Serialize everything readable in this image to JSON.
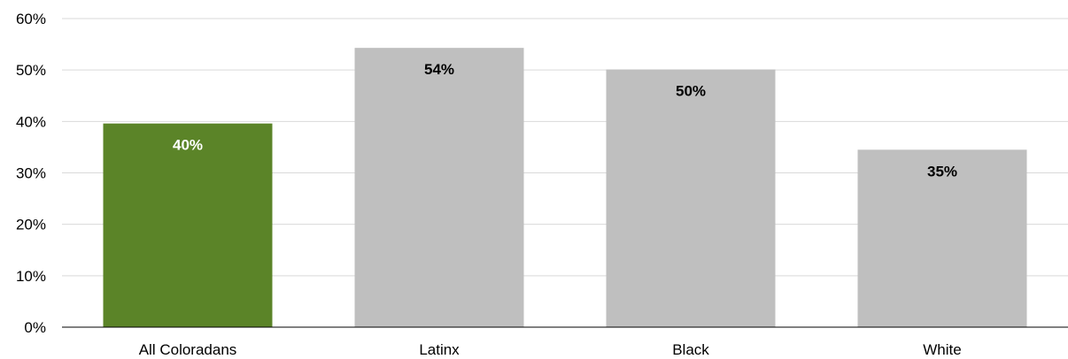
{
  "chart_data": {
    "type": "bar",
    "title": "",
    "xlabel": "",
    "ylabel": "",
    "ylim": [
      0,
      60
    ],
    "yticks": [
      0,
      10,
      20,
      30,
      40,
      50,
      60
    ],
    "ytick_labels": [
      "0%",
      "10%",
      "20%",
      "30%",
      "40%",
      "50%",
      "60%"
    ],
    "categories": [
      "All Coloradans",
      "Latinx",
      "Black",
      "White"
    ],
    "values": [
      39.6,
      54.3,
      50.1,
      34.5
    ],
    "data_labels": [
      "40%",
      "54%",
      "50%",
      "35%"
    ],
    "bar_colors": [
      "#5b8428",
      "#bfbfbf",
      "#bfbfbf",
      "#bfbfbf"
    ],
    "data_label_colors": [
      "#ffffff",
      "#000000",
      "#000000",
      "#000000"
    ],
    "grid": true,
    "grid_color": "#d9d9d9",
    "axis_color": "#000000"
  }
}
